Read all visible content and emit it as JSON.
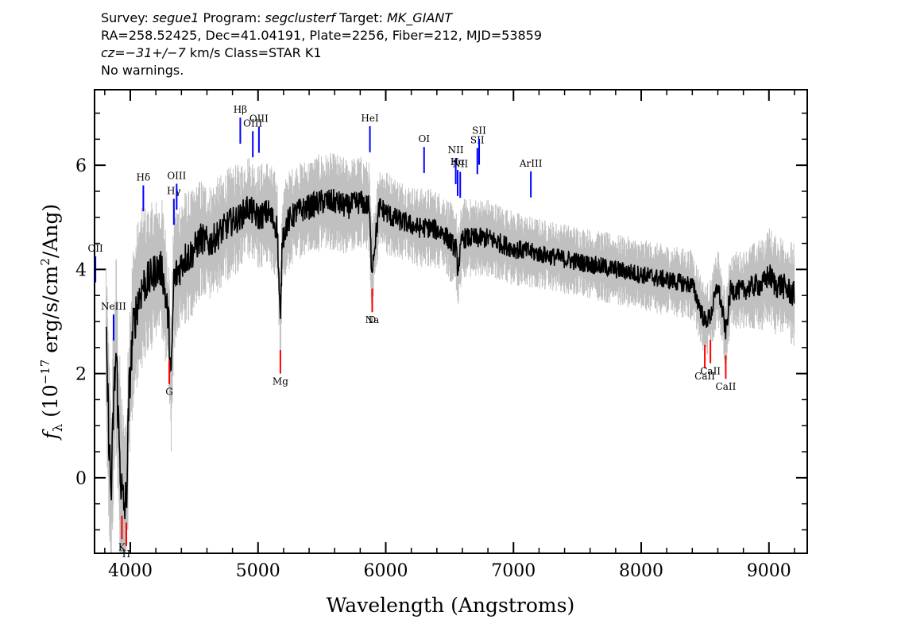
{
  "header": {
    "line1": {
      "survey_label": "Survey: ",
      "survey": "segue1",
      "program_label": " Program: ",
      "program": "segclusterf",
      "target_label": " Target: ",
      "target": "MK_GIANT"
    },
    "line2": "RA=258.52425, Dec=41.04191, Plate=2256, Fiber=212, MJD=53859",
    "line3": {
      "cz_label": "cz",
      "cz_eq": "=",
      "cz_value": "−31+/−7",
      "cz_rest": " km/s Class=STAR K1"
    },
    "line4": "No warnings."
  },
  "chart_data": {
    "type": "line",
    "xlabel": "Wavelength (Angstroms)",
    "ylabel": "f_λ (10^-17 erg/s/cm^2/Ang)",
    "xlim": [
      3720,
      9300
    ],
    "ylim": [
      -1.45,
      7.45
    ],
    "x_ticks": [
      4000,
      5000,
      6000,
      7000,
      8000,
      9000
    ],
    "y_ticks": [
      0,
      2,
      4,
      6
    ],
    "grid": false,
    "colors": {
      "flux": "#000000",
      "error": "#c0c0c0",
      "emission": "#0000ff",
      "absorption": "#ff0000"
    },
    "series": [
      {
        "role": "flux",
        "x": [
          3810,
          3830,
          3850,
          3870,
          3890,
          3910,
          3930,
          3950,
          3970,
          3990,
          4020,
          4060,
          4100,
          4150,
          4200,
          4250,
          4300,
          4320,
          4340,
          4380,
          4420,
          4480,
          4550,
          4620,
          4700,
          4780,
          4860,
          4920,
          5000,
          5080,
          5150,
          5175,
          5190,
          5230,
          5300,
          5400,
          5500,
          5600,
          5700,
          5800,
          5870,
          5890,
          5950,
          6050,
          6150,
          6250,
          6350,
          6450,
          6550,
          6563,
          6600,
          6700,
          6800,
          6900,
          7000,
          7100,
          7200,
          7400,
          7600,
          7800,
          8000,
          8200,
          8400,
          8498,
          8542,
          8600,
          8662,
          8700,
          8800,
          8900,
          8950,
          9000,
          9050,
          9100,
          9150,
          9200
        ],
        "y": [
          2.7,
          1.0,
          -0.4,
          1.5,
          2.4,
          0.8,
          -0.2,
          -0.6,
          -0.4,
          1.6,
          2.8,
          3.4,
          3.7,
          3.8,
          4.0,
          4.0,
          3.0,
          1.8,
          3.8,
          4.0,
          4.2,
          4.3,
          4.6,
          4.5,
          4.7,
          4.9,
          5.0,
          5.2,
          5.0,
          5.1,
          4.8,
          2.9,
          4.6,
          4.9,
          5.1,
          5.2,
          5.3,
          5.3,
          5.2,
          5.3,
          5.2,
          4.0,
          5.2,
          5.0,
          4.9,
          4.8,
          4.8,
          4.7,
          4.4,
          4.0,
          4.6,
          4.6,
          4.6,
          4.5,
          4.4,
          4.35,
          4.3,
          4.2,
          4.1,
          4.0,
          3.9,
          3.8,
          3.7,
          3.0,
          3.1,
          3.7,
          2.8,
          3.6,
          3.6,
          3.7,
          3.7,
          3.9,
          3.7,
          3.7,
          3.6,
          3.5
        ]
      },
      {
        "role": "error",
        "x": [
          3810,
          3850,
          3900,
          3950,
          4000,
          4100,
          4200,
          4300,
          4400,
          4500,
          4700,
          4900,
          5100,
          5300,
          5500,
          5700,
          5900,
          6200,
          6500,
          6800,
          7200,
          7600,
          8000,
          8400,
          8800,
          9000,
          9200
        ],
        "y": [
          1.0,
          1.1,
          1.2,
          1.1,
          1.0,
          0.9,
          0.8,
          0.8,
          0.8,
          0.7,
          0.65,
          0.6,
          0.6,
          0.55,
          0.55,
          0.55,
          0.5,
          0.45,
          0.45,
          0.45,
          0.4,
          0.4,
          0.4,
          0.4,
          0.45,
          0.55,
          0.6
        ]
      }
    ],
    "emission_lines": [
      {
        "label": "OII",
        "x": 3727
      },
      {
        "label": "NeIII",
        "x": 3869
      },
      {
        "label": "Hδ",
        "x": 4102
      },
      {
        "label": "Hγ",
        "x": 4341
      },
      {
        "label": "OIII",
        "x": 4363
      },
      {
        "label": "Hβ",
        "x": 4861
      },
      {
        "label": "OIII",
        "x": 4959
      },
      {
        "label": "OIII",
        "x": 5007
      },
      {
        "label": "HeI",
        "x": 5876
      },
      {
        "label": "OI",
        "x": 6300
      },
      {
        "label": "NII",
        "x": 6548
      },
      {
        "label": "Hα",
        "x": 6563
      },
      {
        "label": "NII",
        "x": 6583
      },
      {
        "label": "SII",
        "x": 6717
      },
      {
        "label": "SII",
        "x": 6731
      },
      {
        "label": "ArIII",
        "x": 7136
      }
    ],
    "absorption_lines": [
      {
        "label": "K",
        "x": 3934
      },
      {
        "label": "H",
        "x": 3969
      },
      {
        "label": "G",
        "x": 4305
      },
      {
        "label": "Mg",
        "x": 5175
      },
      {
        "label": "Na",
        "x": 5894
      },
      {
        "label": "D",
        "x": 5894
      },
      {
        "label": "CaII",
        "x": 8498
      },
      {
        "label": "CaII",
        "x": 8542
      },
      {
        "label": "CaII",
        "x": 8662
      }
    ]
  }
}
